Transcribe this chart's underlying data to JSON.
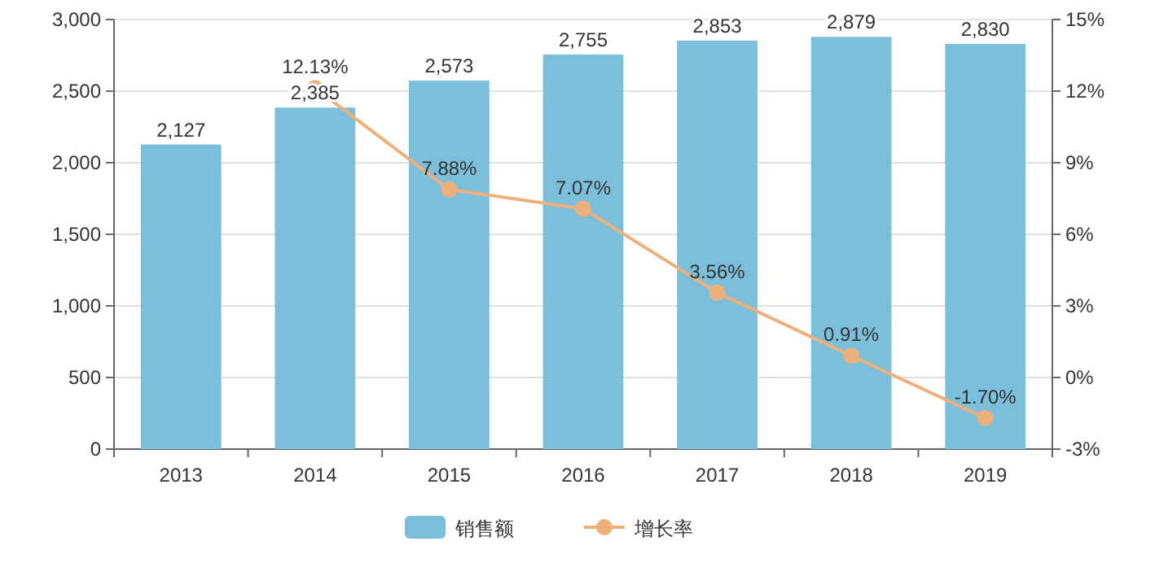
{
  "chart_data": {
    "type": "bar",
    "categories": [
      "2013",
      "2014",
      "2015",
      "2016",
      "2017",
      "2018",
      "2019"
    ],
    "series": [
      {
        "name": "销售额",
        "color": "#7bbfdb",
        "values": [
          2127,
          2385,
          2573,
          2755,
          2853,
          2879,
          2830
        ],
        "value_labels": [
          "2,127",
          "2,385",
          "2,573",
          "2,755",
          "2,853",
          "2,879",
          "2,830"
        ]
      },
      {
        "name": "增长率",
        "type": "line",
        "axis": "y2",
        "color": "#eeb07a",
        "marker": "circle",
        "values": [
          null,
          12.13,
          7.88,
          7.07,
          3.56,
          0.91,
          -1.7
        ],
        "value_labels": [
          null,
          "12.13%",
          "7.88%",
          "7.07%",
          "3.56%",
          "0.91%",
          "-1.70%"
        ]
      }
    ],
    "ylim": [
      0,
      3000
    ],
    "yticks": [
      0,
      {
        "value": 500,
        "label": "500"
      },
      {
        "value": 1000,
        "label": "1,000"
      },
      {
        "value": 1500,
        "label": "1,500"
      },
      {
        "value": 2000,
        "label": "2,000"
      },
      {
        "value": 2500,
        "label": "2,500"
      },
      {
        "value": 3000,
        "label": "3,000"
      }
    ],
    "y2lim": [
      -3,
      15
    ],
    "y2ticks": [
      {
        "value": -3,
        "label": "-3%"
      },
      {
        "value": 0,
        "label": "0%"
      },
      {
        "value": 3,
        "label": "3%"
      },
      {
        "value": 6,
        "label": "6%"
      },
      {
        "value": 9,
        "label": "9%"
      },
      {
        "value": 12,
        "label": "12%"
      },
      {
        "value": 15,
        "label": "15%"
      }
    ],
    "grid": "y",
    "legend": "bottom"
  }
}
